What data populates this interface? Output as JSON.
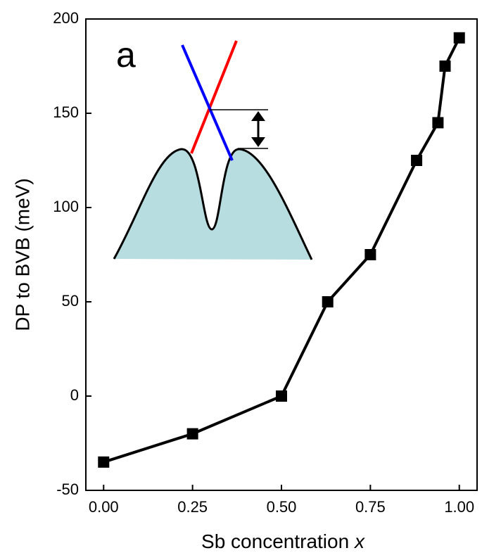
{
  "chart_data": {
    "type": "line",
    "annotation": "a",
    "xlabel": {
      "text": "Sb concentration",
      "variable": "x"
    },
    "ylabel": "DP  to BVB (meV)",
    "x": [
      0,
      0.25,
      0.5,
      0.63,
      0.75,
      0.88,
      0.94,
      0.96,
      1.0
    ],
    "series": [
      {
        "color": "#000000",
        "values": [
          -35,
          -20,
          0,
          50,
          75,
          125,
          145,
          175,
          190
        ]
      }
    ],
    "xlim": [
      -0.05,
      1.05
    ],
    "ylim": [
      -50,
      200
    ],
    "xticks": [
      {
        "value": 0,
        "label": "0.00"
      },
      {
        "value": 0.25,
        "label": "0.25"
      },
      {
        "value": 0.5,
        "label": "0.50"
      },
      {
        "value": 0.75,
        "label": "0.75"
      },
      {
        "value": 1,
        "label": "1.00"
      }
    ],
    "yticks": [
      -50,
      0,
      50,
      100,
      150,
      200
    ]
  }
}
